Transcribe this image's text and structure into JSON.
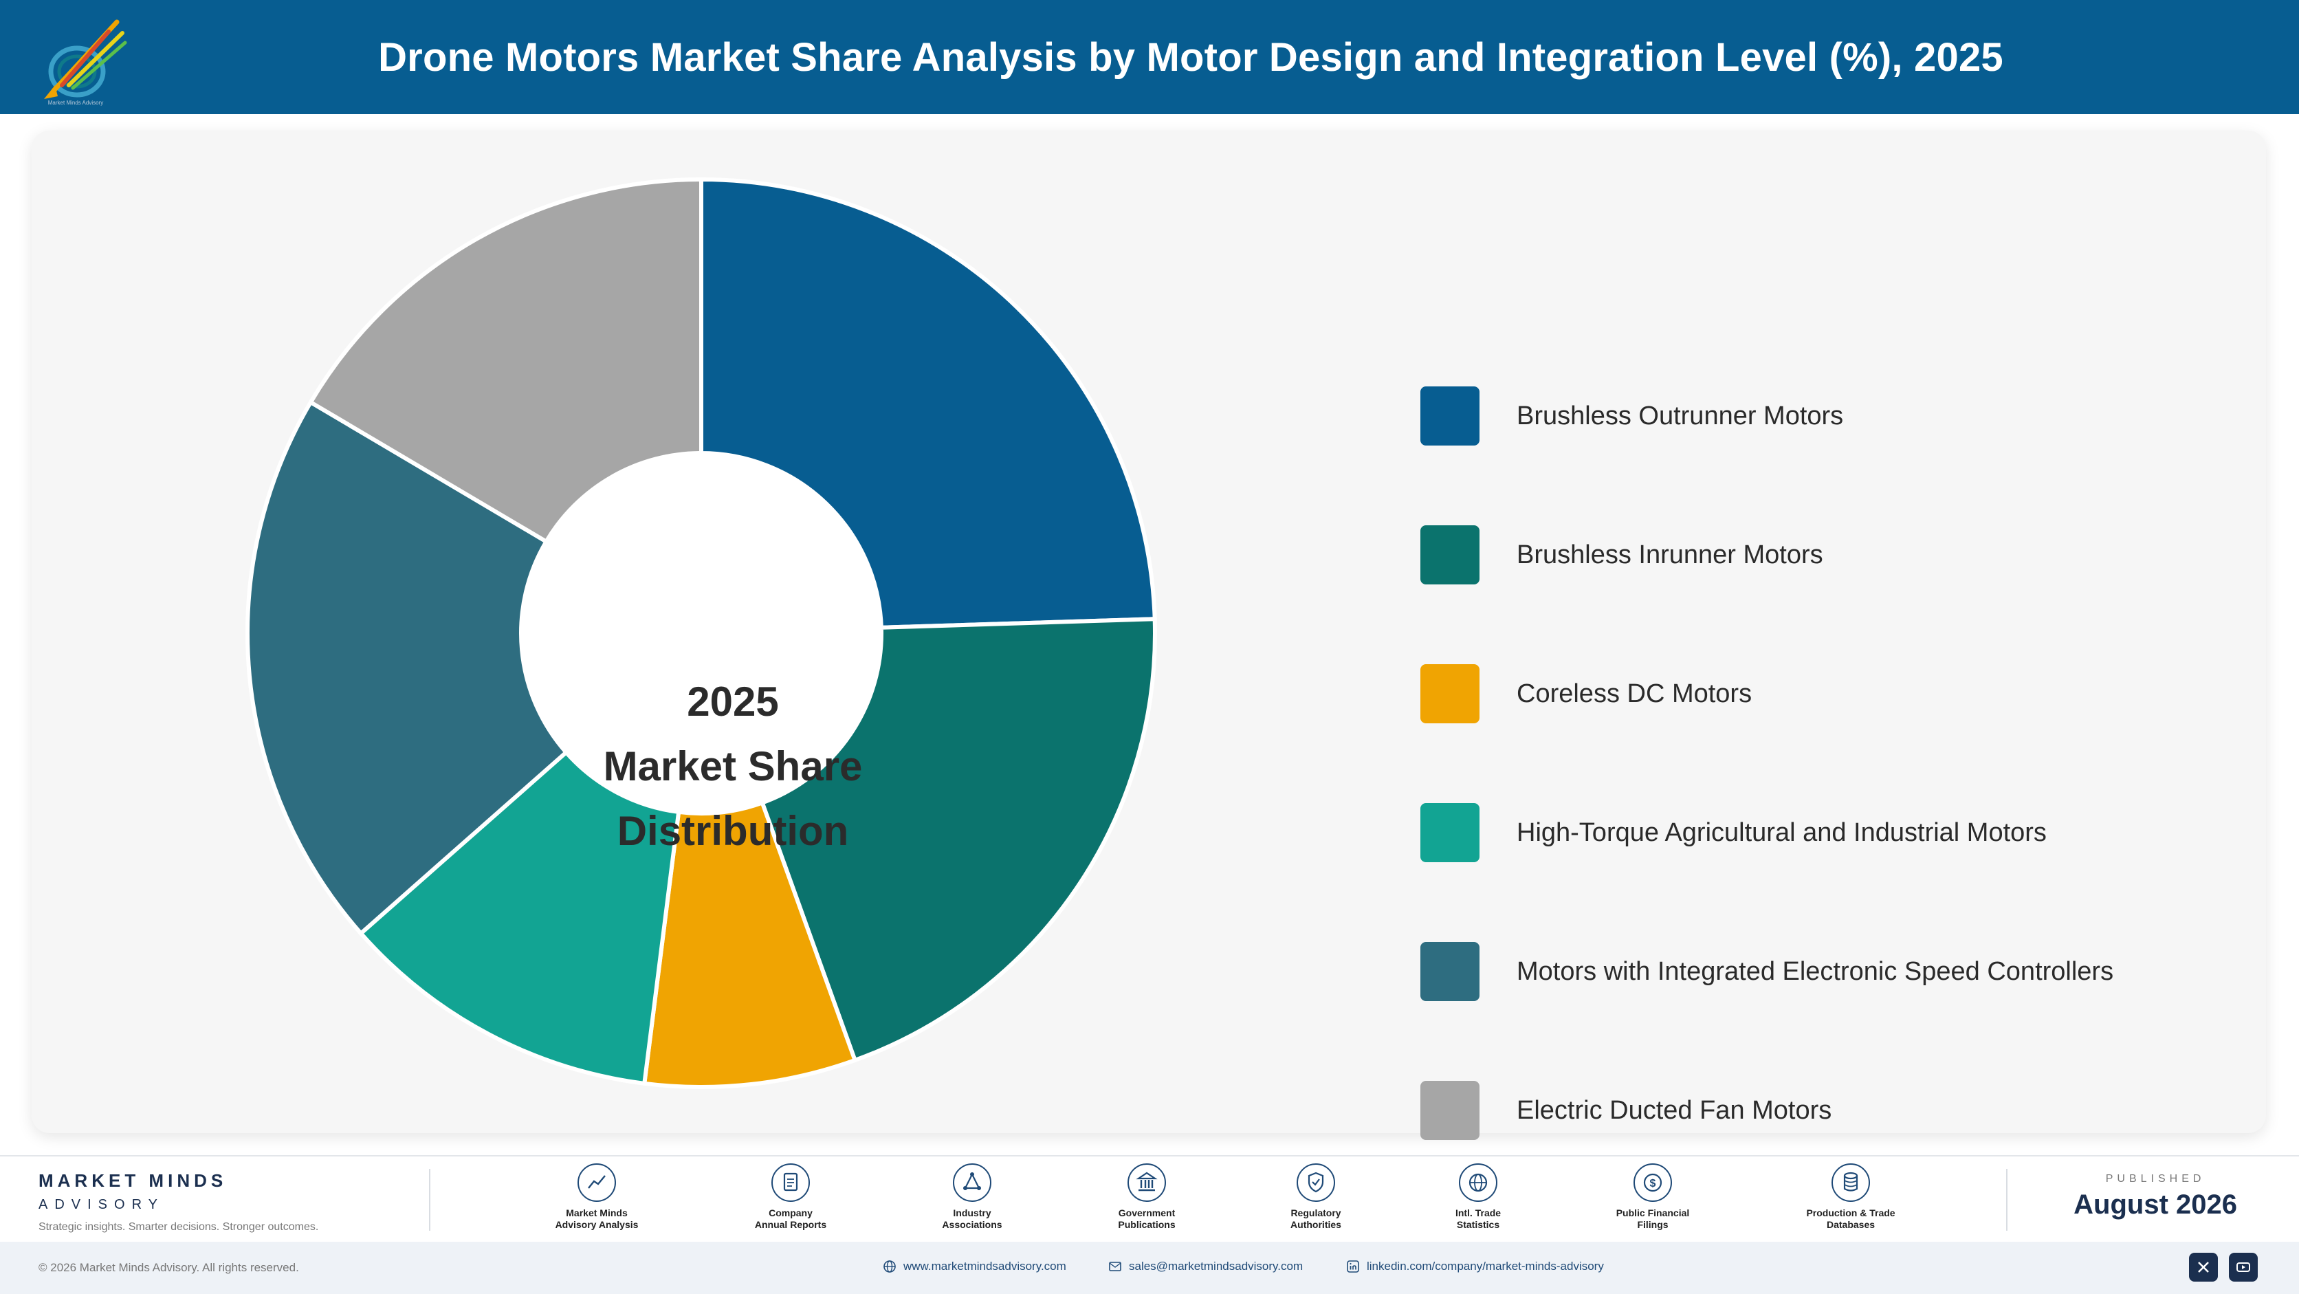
{
  "header": {
    "title": "Drone Motors Market Share Analysis by Motor Design and Integration Level (%), 2025",
    "background": "#075d91"
  },
  "chart_data": {
    "type": "pie",
    "style": "donut",
    "categories": [
      "Brushless Outrunner Motors",
      "Brushless Inrunner Motors",
      "Coreless DC Motors",
      "High-Torque Agricultural and Industrial Motors",
      "Motors with Integrated Electronic Speed Controllers",
      "Electric Ducted Fan Motors"
    ],
    "values": [
      24.5,
      20.0,
      7.5,
      11.5,
      20.0,
      16.5
    ],
    "colors": [
      "#075d91",
      "#0b736d",
      "#f0a402",
      "#12a493",
      "#2e6d80",
      "#a6a6a6"
    ],
    "center_label": [
      "2025",
      "Market Share",
      "Distribution"
    ],
    "legend_position": "right"
  },
  "footer": {
    "brand_name": "MARKET MINDS",
    "brand_sub": "ADVISORY",
    "tagline": "Strategic insights. Smarter decisions. Stronger outcomes.",
    "sources": [
      {
        "icon": "chart-line-icon",
        "label": [
          "Market Minds",
          "Advisory Analysis"
        ]
      },
      {
        "icon": "document-icon",
        "label": [
          "Company",
          "Annual Reports"
        ]
      },
      {
        "icon": "network-icon",
        "label": [
          "Industry",
          "Associations"
        ]
      },
      {
        "icon": "government-building-icon",
        "label": [
          "Government",
          "Publications"
        ]
      },
      {
        "icon": "shield-check-icon",
        "label": [
          "Regulatory",
          "Authorities"
        ]
      },
      {
        "icon": "globe-icon",
        "label": [
          "Intl. Trade",
          "Statistics"
        ]
      },
      {
        "icon": "dollar-circle-icon",
        "label": [
          "Public Financial",
          "Filings"
        ]
      },
      {
        "icon": "database-icon",
        "label": [
          "Production & Trade",
          "Databases"
        ]
      }
    ],
    "published_label": "PUBLISHED",
    "published_date": "August 2026",
    "copyright": "© 2026 Market Minds Advisory. All rights reserved.",
    "website": "www.marketmindsadvisory.com",
    "email": "sales@marketmindsadvisory.com",
    "linkedin": "linkedin.com/company/market-minds-advisory"
  }
}
